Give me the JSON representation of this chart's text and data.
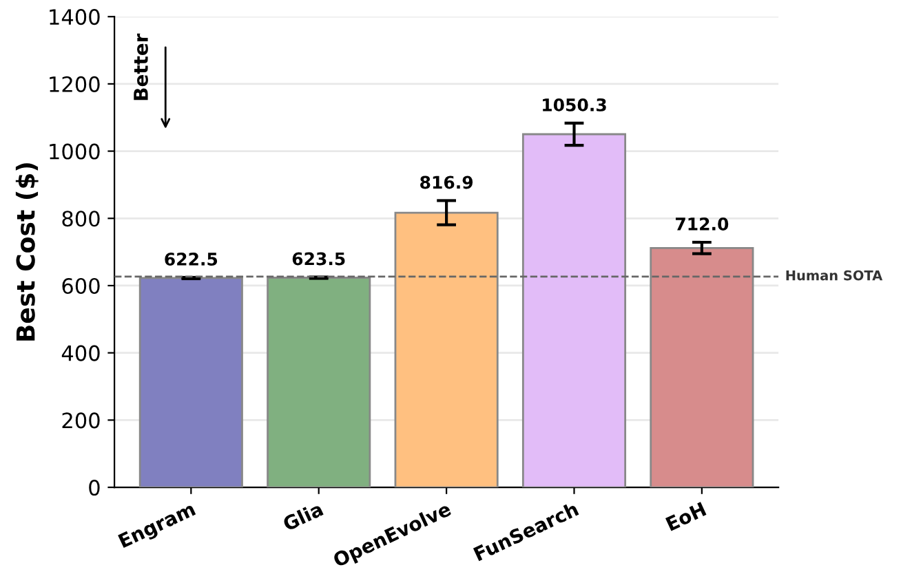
{
  "chart_data": {
    "type": "bar",
    "ylabel": "Best Cost ($)",
    "categories": [
      "Engram",
      "Glia",
      "OpenEvolve",
      "FunSearch",
      "EoH"
    ],
    "values": [
      622.5,
      623.5,
      816.9,
      1050.3,
      712.0
    ],
    "value_labels": [
      "622.5",
      "623.5",
      "816.9",
      "1050.3",
      "712.0"
    ],
    "errors": [
      2,
      2,
      36,
      33,
      17
    ],
    "colors": [
      "#8080c0",
      "#80b080",
      "#ffc080",
      "#e2bcf8",
      "#d78c8c"
    ],
    "ylim": [
      0,
      1400
    ],
    "yticks": [
      0,
      200,
      400,
      600,
      800,
      1000,
      1200,
      1400
    ],
    "grid": "y",
    "ref_lines": [
      {
        "axis": "y",
        "value": 627,
        "label": "Human SOTA",
        "color": "#666666",
        "line_style": "dashed"
      }
    ],
    "annotations": [
      "Better"
    ]
  }
}
